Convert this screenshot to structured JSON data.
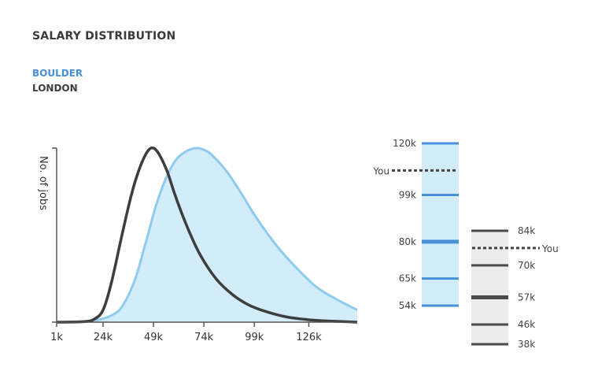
{
  "title": "SALARY DISTRIBUTION",
  "colors": {
    "boulder": "#4a90d9",
    "london": "#3d3d3d",
    "boulder_line": "#8ecbec",
    "boulder_fill": "#d3ecfa",
    "axis": "#555555",
    "range_bg_boulder": "#d3ecfa",
    "range_bg_london": "#ececec",
    "box_line_boulder": "#4a90d9",
    "box_line_london": "#4a4a4a"
  },
  "chart_data": [
    {
      "type": "area",
      "title": "SALARY DISTRIBUTION",
      "ylabel": "No. of jobs",
      "xlabel": "",
      "x_ticks": [
        "1k",
        "24k",
        "49k",
        "74k",
        "99k",
        "126k"
      ],
      "x_tick_values": [
        1,
        24,
        49,
        74,
        99,
        126
      ],
      "xlim": [
        1,
        150
      ],
      "ylim": [
        0,
        1
      ],
      "legend": [
        "BOULDER",
        "LONDON"
      ],
      "series": [
        {
          "name": "BOULDER",
          "filled": true,
          "x": [
            1,
            20,
            30,
            35,
            40,
            45,
            50,
            55,
            60,
            65,
            70,
            74,
            78,
            85,
            92,
            100,
            110,
            120,
            130,
            140,
            150
          ],
          "y": [
            0.0,
            0.01,
            0.05,
            0.12,
            0.25,
            0.45,
            0.66,
            0.82,
            0.93,
            0.98,
            1.0,
            0.99,
            0.96,
            0.87,
            0.75,
            0.6,
            0.44,
            0.31,
            0.2,
            0.13,
            0.07
          ]
        },
        {
          "name": "LONDON",
          "filled": false,
          "x": [
            1,
            15,
            20,
            24,
            28,
            33,
            38,
            42,
            46,
            49,
            52,
            56,
            60,
            66,
            72,
            80,
            88,
            96,
            105,
            115,
            125,
            135,
            150
          ],
          "y": [
            0.0,
            0.003,
            0.02,
            0.07,
            0.22,
            0.48,
            0.73,
            0.88,
            0.98,
            1.0,
            0.96,
            0.86,
            0.72,
            0.54,
            0.39,
            0.25,
            0.16,
            0.1,
            0.06,
            0.03,
            0.015,
            0.007,
            0.0
          ]
        }
      ]
    },
    {
      "type": "box",
      "name": "BOULDER",
      "min_label": "54k",
      "levels": [
        {
          "label": "120k",
          "value": 120,
          "emphasis": false
        },
        {
          "label": "99k",
          "value": 99,
          "emphasis": false
        },
        {
          "label": "80k",
          "value": 80,
          "emphasis": true
        },
        {
          "label": "65k",
          "value": 65,
          "emphasis": false
        },
        {
          "label": "54k",
          "value": 54,
          "emphasis": false
        }
      ],
      "you": {
        "label": "You",
        "value": 109
      }
    },
    {
      "type": "box",
      "name": "LONDON",
      "levels": [
        {
          "label": "84k",
          "value": 84,
          "emphasis": false
        },
        {
          "label": "70k",
          "value": 70,
          "emphasis": false
        },
        {
          "label": "57k",
          "value": 57,
          "emphasis": true
        },
        {
          "label": "46k",
          "value": 46,
          "emphasis": false
        },
        {
          "label": "38k",
          "value": 38,
          "emphasis": false
        }
      ],
      "you": {
        "label": "You",
        "value": 77
      }
    }
  ]
}
